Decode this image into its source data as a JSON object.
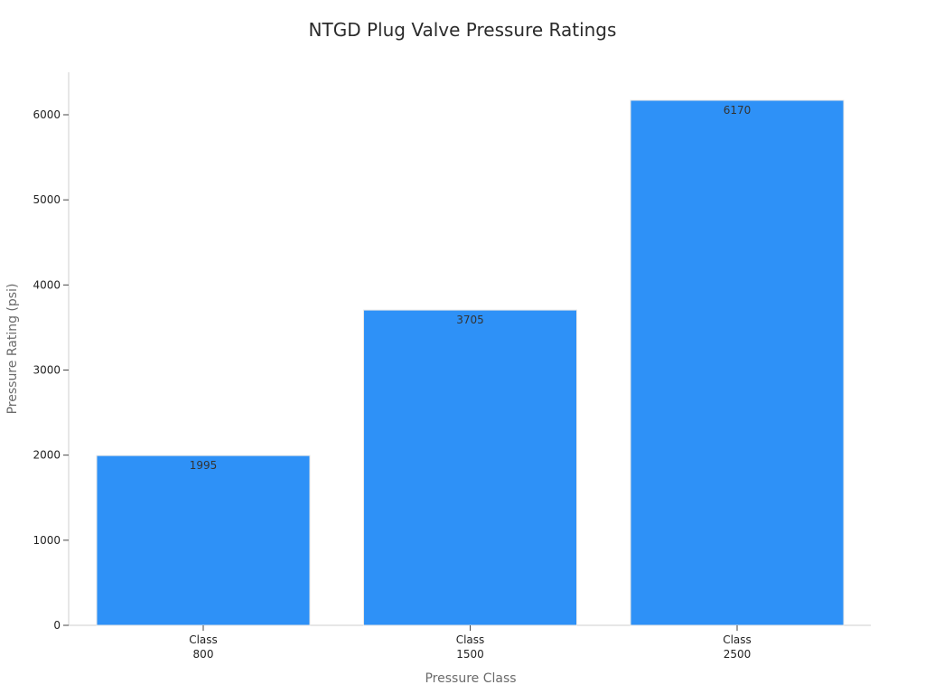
{
  "chart_data": {
    "type": "bar",
    "title": "NTGD Plug Valve Pressure Ratings",
    "xlabel": "Pressure Class",
    "ylabel": "Pressure Rating (psi)",
    "categories": [
      [
        "Class",
        "800"
      ],
      [
        "Class",
        "1500"
      ],
      [
        "Class",
        "2500"
      ]
    ],
    "values": [
      1995,
      3705,
      6170
    ],
    "data_labels": [
      "1995",
      "3705",
      "6170"
    ],
    "ylim": [
      0,
      6500
    ],
    "yticks": [
      0,
      1000,
      2000,
      3000,
      4000,
      5000,
      6000
    ],
    "grid": false,
    "legend": "none",
    "colors": {
      "bar": "#2e91f7",
      "bar_edge": "#e6e6e6"
    }
  }
}
